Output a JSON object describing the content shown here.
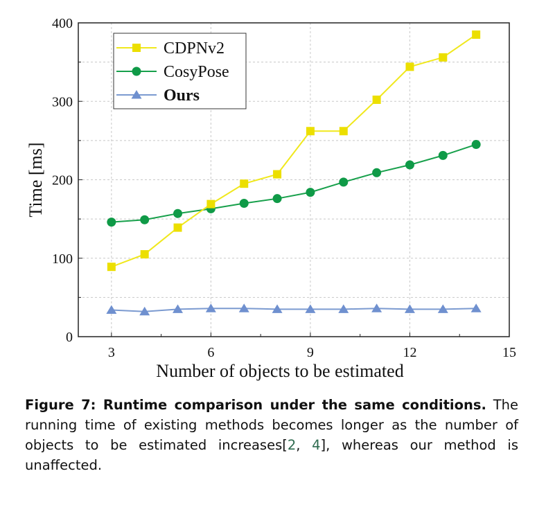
{
  "chart_data": {
    "type": "line",
    "title": "",
    "xlabel": "Number of objects to be estimated",
    "ylabel": "Time [ms]",
    "xlim": [
      2,
      15
    ],
    "ylim": [
      0,
      400
    ],
    "xticks": [
      3,
      6,
      9,
      12,
      15
    ],
    "yticks": [
      0,
      100,
      200,
      300,
      400
    ],
    "grid": true,
    "legend_placement": "top-left",
    "x": [
      3,
      4,
      5,
      6,
      7,
      8,
      9,
      10,
      11,
      12,
      13,
      14
    ],
    "series": [
      {
        "name": "CDPNv2",
        "marker": "square",
        "color": "#f0e81c",
        "markerColor": "#ecdf00",
        "values": [
          89,
          105,
          139,
          169,
          195,
          207,
          262,
          262,
          302,
          344,
          356,
          385
        ]
      },
      {
        "name": "CosyPose",
        "marker": "circle",
        "color": "#17a04b",
        "markerColor": "#0f9a47",
        "values": [
          146,
          149,
          157,
          163,
          170,
          176,
          184,
          197,
          209,
          219,
          231,
          245
        ]
      },
      {
        "name": "Ours",
        "marker": "triangle",
        "color": "#7b9ad0",
        "markerColor": "#6f90cf",
        "bold": true,
        "values": [
          34,
          32,
          35,
          36,
          36,
          35,
          35,
          35,
          36,
          35,
          35,
          36
        ]
      }
    ]
  },
  "caption": {
    "label": "Figure 7: Runtime comparison under the same conditions.",
    "text_before": " The running time of existing methods becomes longer as the number of objects to be estimated increases[",
    "cite1": "2",
    "sep": ", ",
    "cite2": "4",
    "text_after": "], whereas our method is unaffected."
  }
}
